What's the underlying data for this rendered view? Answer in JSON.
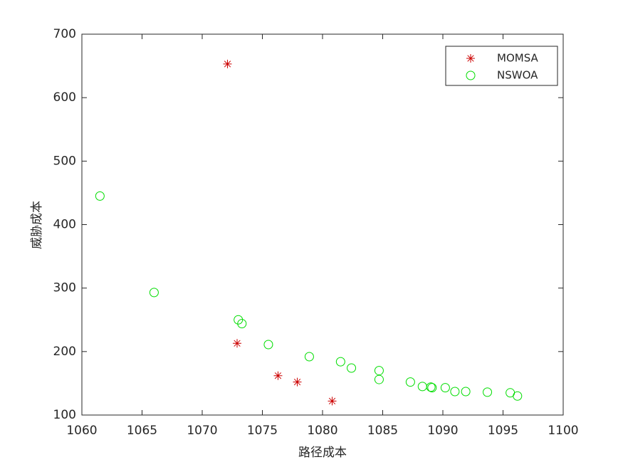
{
  "chart_data": {
    "type": "scatter",
    "xlabel": "路径成本",
    "ylabel": "威胁成本",
    "xlim": [
      1060,
      1100
    ],
    "ylim": [
      100,
      700
    ],
    "xticks": [
      1060,
      1065,
      1070,
      1075,
      1080,
      1085,
      1090,
      1095,
      1100
    ],
    "yticks": [
      100,
      200,
      300,
      400,
      500,
      600,
      700
    ],
    "legend": "top-right",
    "series": [
      {
        "name": "MOMSA",
        "color": "#cc0000",
        "marker": "star",
        "x": [
          1072.1,
          1072.9,
          1076.3,
          1077.9,
          1080.8
        ],
        "values": [
          653,
          213,
          162,
          152,
          122
        ]
      },
      {
        "name": "NSWOA",
        "color": "#00dd00",
        "marker": "circle",
        "x": [
          1061.5,
          1066.0,
          1073.0,
          1073.3,
          1075.5,
          1078.9,
          1081.5,
          1082.4,
          1084.7,
          1084.7,
          1087.3,
          1088.3,
          1089.0,
          1089.1,
          1090.2,
          1091.0,
          1091.9,
          1093.7,
          1095.6,
          1096.2
        ],
        "values": [
          445,
          293,
          250,
          244,
          211,
          192,
          184,
          174,
          170,
          156,
          152,
          145,
          144,
          143,
          143,
          137,
          137,
          136,
          135,
          130
        ]
      }
    ]
  }
}
